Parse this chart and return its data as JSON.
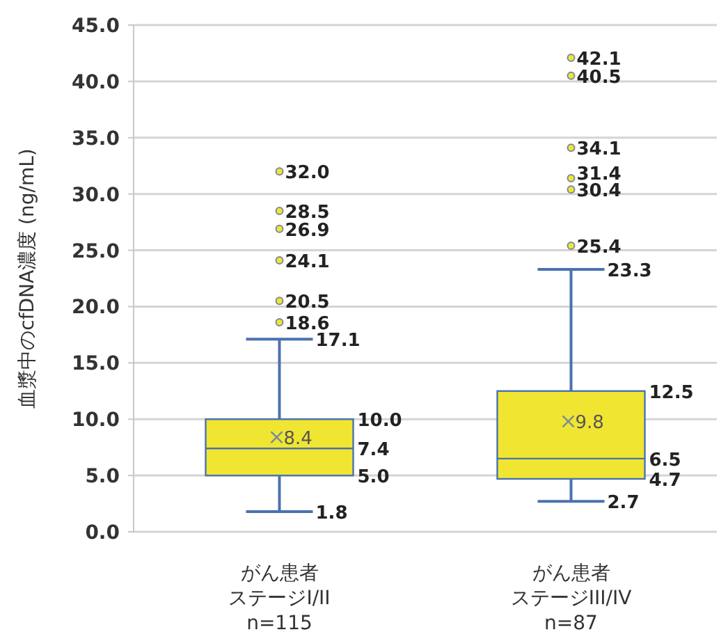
{
  "chart_data": {
    "type": "box",
    "ylabel": "血漿中のcfDNA濃度 (ng/mL)",
    "categories": [
      "がん患者ステージI/II n=115",
      "がん患者ステージIII/IV n=87"
    ],
    "boxes": [
      {
        "low": 1.8,
        "q1": 5.0,
        "median": 7.4,
        "q3": 10.0,
        "high": 17.1,
        "mean": 8.4,
        "outliers": [
          18.6,
          20.5,
          24.1,
          26.9,
          28.5,
          32.0
        ]
      },
      {
        "low": 2.7,
        "q1": 4.7,
        "median": 6.5,
        "q3": 12.5,
        "high": 23.3,
        "mean": 9.8,
        "outliers": [
          25.4,
          30.4,
          31.4,
          34.1,
          40.5,
          42.1
        ]
      }
    ],
    "color": "#f0e632",
    "ylim": [
      0,
      45
    ],
    "yticks": [
      {
        "value": 0,
        "label": "0.0"
      },
      {
        "value": 5,
        "label": "5.0"
      },
      {
        "value": 10,
        "label": "10.0"
      },
      {
        "value": 15,
        "label": "15.0"
      },
      {
        "value": 20,
        "label": "20.0"
      },
      {
        "value": 25,
        "label": "25.0"
      },
      {
        "value": 30,
        "label": "30.0"
      },
      {
        "value": 35,
        "label": "35.0"
      },
      {
        "value": 40,
        "label": "40.0"
      },
      {
        "value": 45,
        "label": "45.0"
      }
    ],
    "grid": "y",
    "annotations": [
      "1.8",
      "5.0",
      "7.4",
      "8.4",
      "10.0",
      "17.1",
      "18.6",
      "20.5",
      "24.1",
      "26.9",
      "28.5",
      "32.0",
      "2.7",
      "4.7",
      "6.5",
      "9.8",
      "12.5",
      "23.3",
      "25.4",
      "30.4",
      "31.4",
      "34.1",
      "40.5",
      "42.1"
    ]
  }
}
